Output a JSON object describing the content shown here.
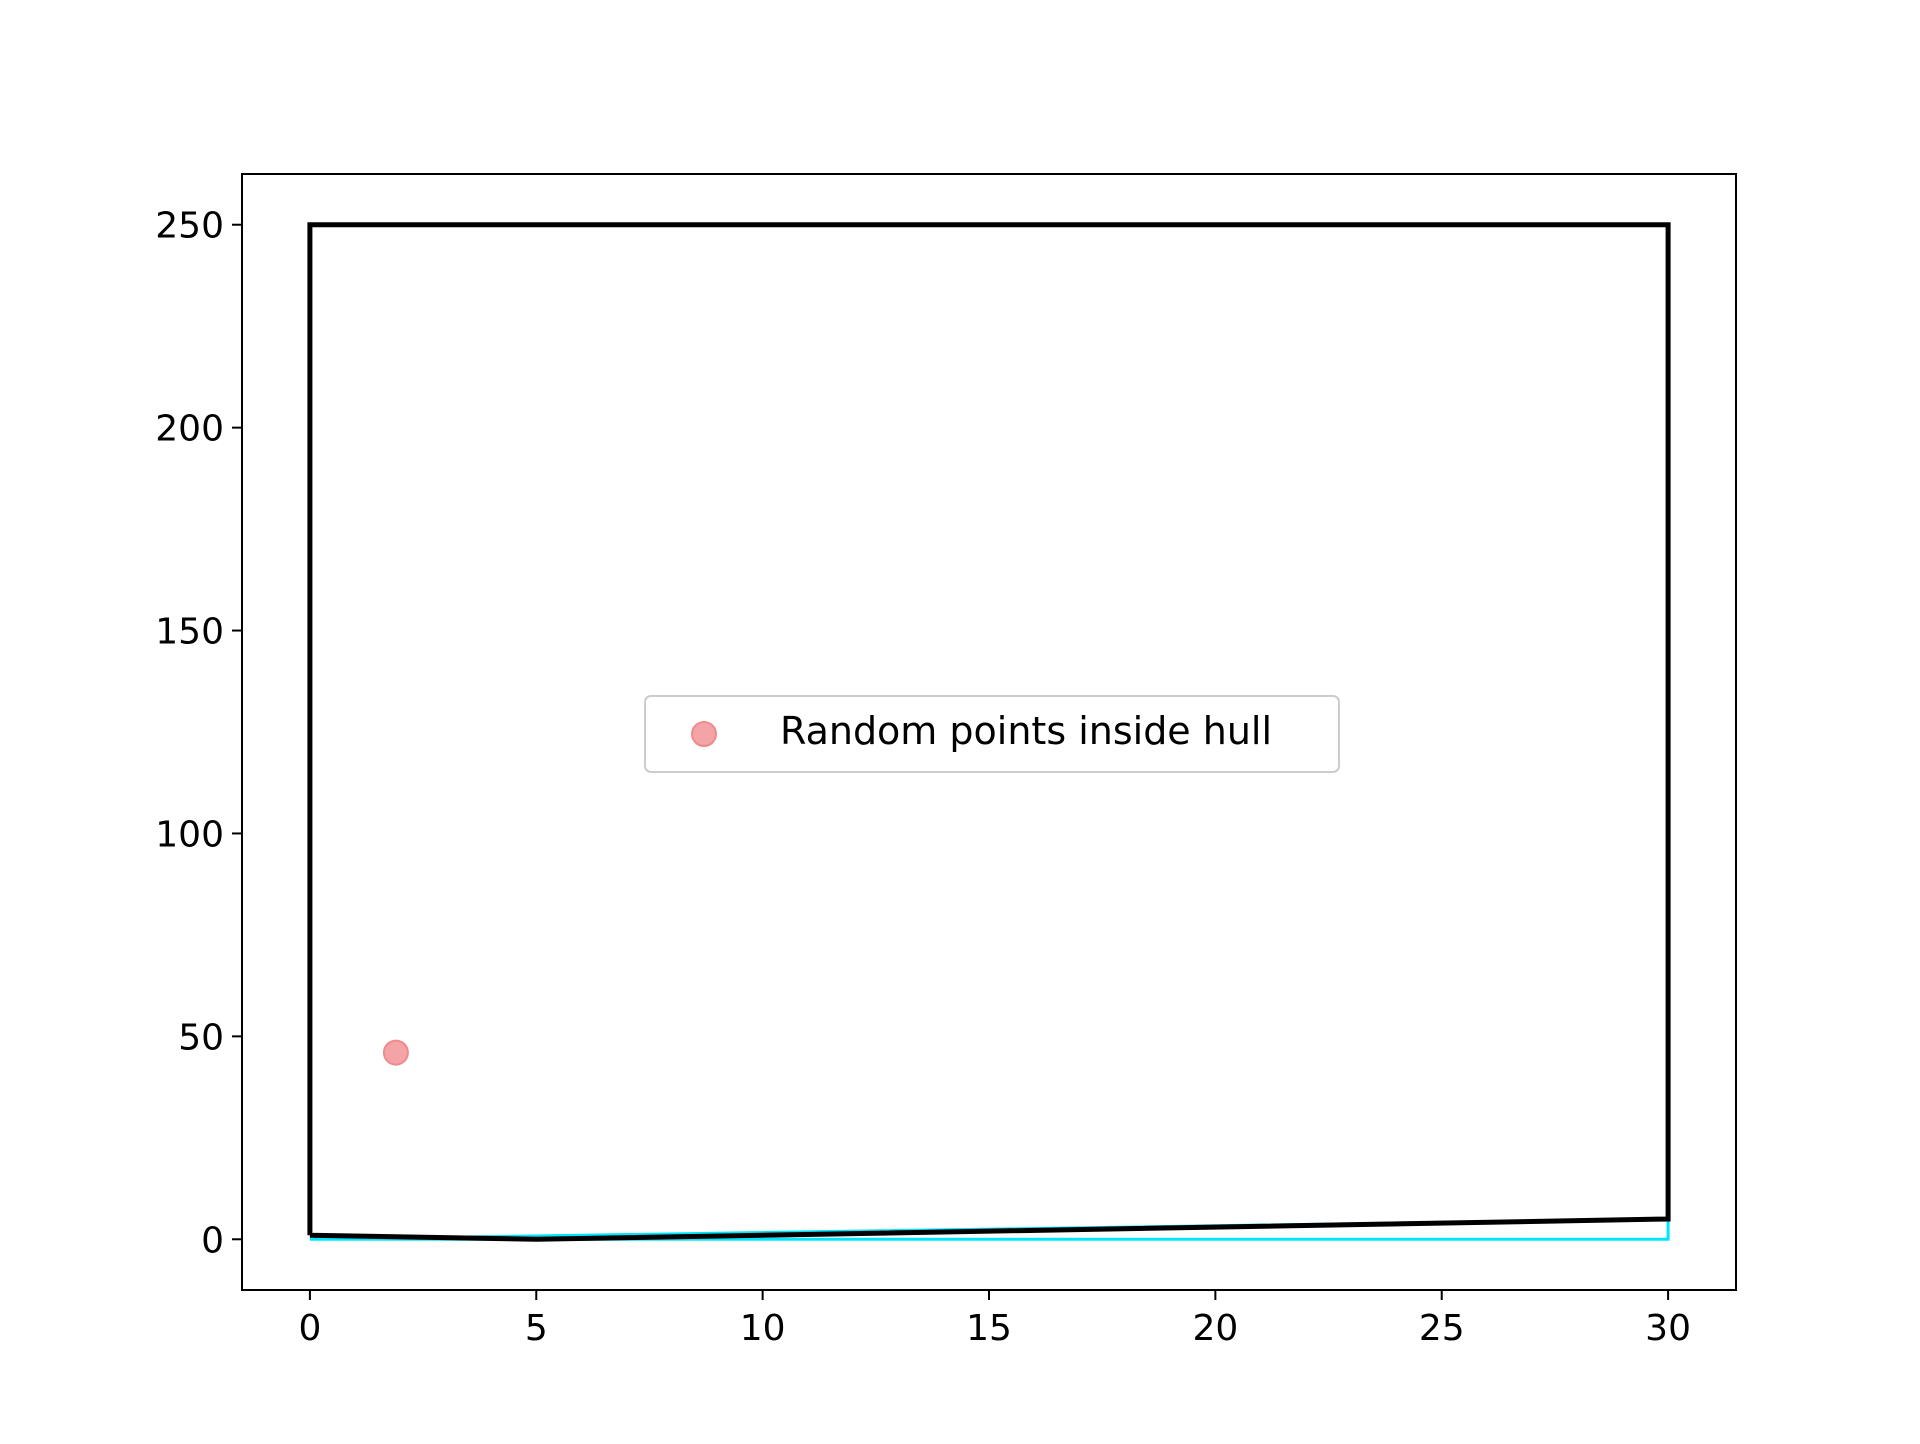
{
  "chart_data": {
    "type": "line",
    "title": "",
    "xlabel": "",
    "ylabel": "",
    "xlim": [
      -1.5,
      31.5
    ],
    "ylim": [
      -12.5,
      262.5
    ],
    "xticks": [
      0,
      5,
      10,
      15,
      20,
      25,
      30
    ],
    "yticks": [
      0,
      50,
      100,
      150,
      200,
      250
    ],
    "xtick_labels": [
      "0",
      "5",
      "10",
      "15",
      "20",
      "25",
      "30"
    ],
    "ytick_labels": [
      "0",
      "50",
      "100",
      "150",
      "200",
      "250"
    ],
    "grid": false,
    "legend": {
      "placement": "center",
      "entries": [
        "Random points inside hull"
      ]
    },
    "series": [
      {
        "kind": "line",
        "color": "#00e5ff",
        "x": [
          0,
          30,
          30,
          0
        ],
        "y": [
          0,
          0,
          5,
          0
        ]
      },
      {
        "kind": "line",
        "color": "#000000",
        "x": [
          0,
          5,
          30,
          30,
          0,
          0
        ],
        "y": [
          1,
          0,
          5,
          250,
          250,
          1
        ]
      },
      {
        "kind": "scatter",
        "name": "Random points inside hull",
        "color": "#f4a3a6",
        "edgecolor": "#f08a8e",
        "x": [
          1.9
        ],
        "y": [
          46
        ]
      }
    ]
  }
}
